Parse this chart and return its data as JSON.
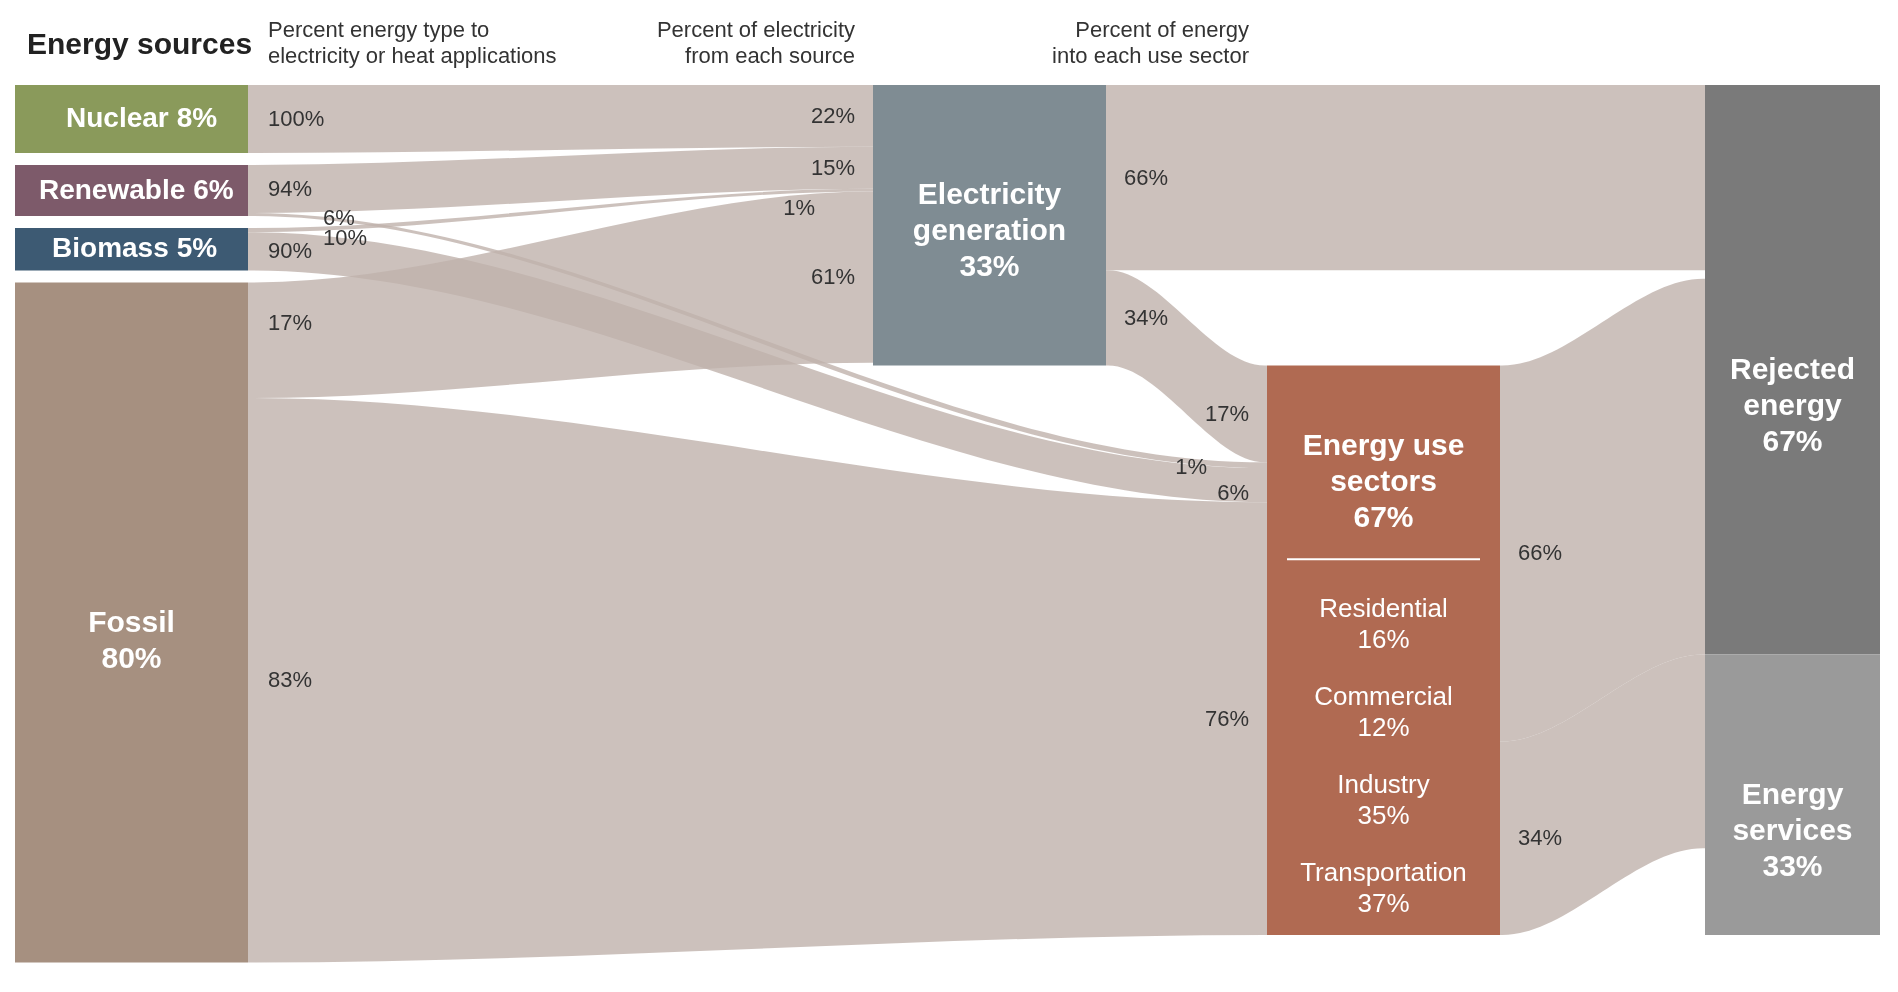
{
  "chart_data": {
    "type": "other",
    "title": "Energy sources",
    "categories": [
      "Nuclear",
      "Renewable",
      "Biomass",
      "Fossil",
      "Electricity generation",
      "Energy use sectors",
      "Residential",
      "Commercial",
      "Industry",
      "Transportation",
      "Rejected energy",
      "Energy services"
    ],
    "values": [
      8,
      6,
      5,
      80,
      33,
      67,
      16,
      12,
      35,
      37,
      67,
      33
    ],
    "value_labels": [
      "8%",
      "6%",
      "5%",
      "80%",
      "33%",
      "67%",
      "16%",
      "12%",
      "35%",
      "37%",
      "67%",
      "33%"
    ],
    "colors": [
      "#8a9a5b",
      "#7d5a6a",
      "#3d5a73",
      "#a69080",
      "#7f8c93",
      "#b06a52",
      "#ffffff",
      "#ffffff",
      "#ffffff",
      "#ffffff",
      "#7a7a7a",
      "#9a9a9a"
    ],
    "annotations": [
      "Percent energy type to electricity or heat applications",
      "Percent of electricity from each source",
      "Percent of energy into each use sector",
      "100%",
      "94%",
      "6%",
      "90%",
      "10%",
      "17%",
      "83%",
      "22%",
      "15%",
      "1%",
      "61%",
      "66%",
      "34%",
      "17%",
      "1%",
      "6%",
      "76%",
      "66%",
      "34%"
    ]
  }
}
